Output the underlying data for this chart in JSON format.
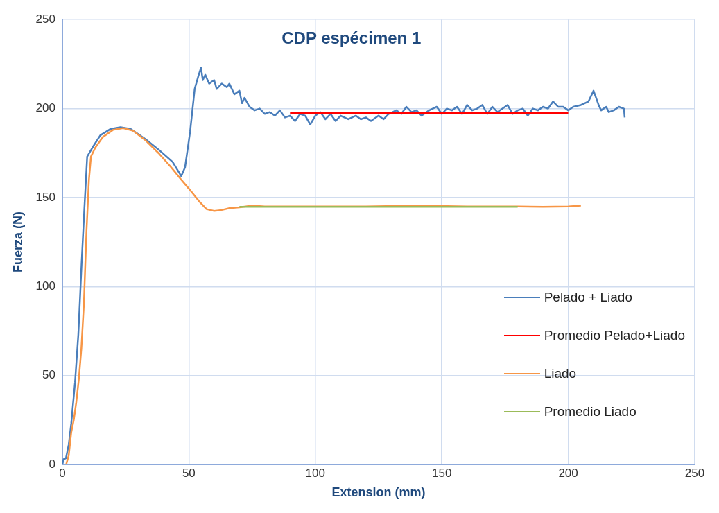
{
  "chart_data": {
    "type": "line",
    "title": "CDP espécimen 1",
    "xlabel": "Extension (mm)",
    "ylabel": "Fuerza (N)",
    "xlim": [
      0,
      250
    ],
    "xticks": [
      0,
      50,
      100,
      150,
      200,
      250
    ],
    "ylim": [
      0,
      250
    ],
    "yticks": [
      0,
      50,
      100,
      150,
      200,
      250
    ],
    "grid": true,
    "legend": "bottom right",
    "marker": "none",
    "line_style": "solid",
    "series": [
      {
        "name": "Pelado + Liado",
        "color": "#4a7ebb",
        "x": [
          0,
          0.5,
          1.4,
          2.5,
          3.5,
          5,
          6.3,
          7.6,
          8.7,
          9.8,
          12.3,
          15,
          19,
          23,
          27,
          32.7,
          38,
          43.6,
          47,
          48.5,
          50.5,
          52.3,
          53.7,
          54.8,
          55.5,
          56.5,
          58,
          60,
          61,
          63,
          65,
          66,
          68,
          70,
          71,
          72,
          74,
          76,
          78,
          80,
          82,
          84,
          86,
          88,
          90,
          92,
          94,
          96,
          98,
          100,
          102,
          104,
          106,
          108,
          110,
          113,
          116,
          118,
          120,
          122,
          125,
          127,
          129,
          132,
          134,
          136,
          138,
          140,
          142,
          145,
          148,
          150,
          152,
          154,
          156,
          158,
          160,
          162,
          164,
          166,
          168,
          170,
          172,
          174,
          176,
          178,
          180,
          182,
          184,
          186,
          188,
          190,
          192,
          194,
          196,
          198,
          200,
          202,
          205,
          208,
          210,
          212,
          213,
          215,
          216,
          218,
          220,
          222,
          222.3
        ],
        "values": [
          0,
          3,
          3.5,
          11,
          23,
          46,
          73,
          113,
          144,
          173,
          179,
          185,
          188.5,
          189.5,
          188.5,
          183,
          177,
          170,
          162,
          167,
          187,
          211,
          218,
          223,
          216,
          219,
          214,
          216,
          211,
          214,
          212,
          214,
          208,
          210,
          203,
          206,
          201,
          199,
          200,
          197,
          198,
          196,
          199,
          195,
          196,
          193,
          197,
          196,
          191,
          196,
          198,
          194,
          197,
          193,
          196,
          194,
          196,
          194,
          195,
          193,
          196,
          194,
          197,
          199,
          197,
          201,
          198,
          199,
          196,
          199,
          201,
          197,
          200,
          199,
          201,
          197,
          202,
          199,
          200,
          202,
          197,
          201,
          198,
          200,
          202,
          197,
          199,
          200,
          196,
          200,
          199,
          201,
          200,
          204,
          201,
          201,
          199,
          201,
          202,
          204,
          210,
          202,
          199,
          201,
          198,
          199,
          201,
          200,
          195
        ]
      },
      {
        "name": "Promedio Pelado+Liado",
        "color": "#ff0000",
        "x": [
          90,
          200
        ],
        "values": [
          197.4,
          197.4
        ]
      },
      {
        "name": "Liado",
        "color": "#f79646",
        "x": [
          1.5,
          2.5,
          3.5,
          4.5,
          5.5,
          6.5,
          7.5,
          8.5,
          9.5,
          10.5,
          11.3,
          13,
          16,
          20,
          24,
          28,
          33,
          38,
          43,
          47,
          50,
          54,
          57,
          60,
          63,
          66,
          70,
          75,
          80,
          90,
          100,
          120,
          140,
          160,
          180,
          190,
          200,
          205
        ],
        "values": [
          0,
          5,
          18,
          25,
          35,
          48,
          65,
          90,
          130,
          160,
          173,
          178,
          184,
          188,
          189,
          187.5,
          182,
          175,
          167,
          160,
          155,
          148,
          143.5,
          142.5,
          143,
          144,
          144.5,
          145.5,
          145,
          145,
          145,
          145,
          145.5,
          145,
          145,
          144.8,
          145,
          145.5
        ]
      },
      {
        "name": "Promedio Liado",
        "color": "#9bbb59",
        "x": [
          70,
          180
        ],
        "values": [
          144.8,
          144.8
        ]
      }
    ]
  }
}
